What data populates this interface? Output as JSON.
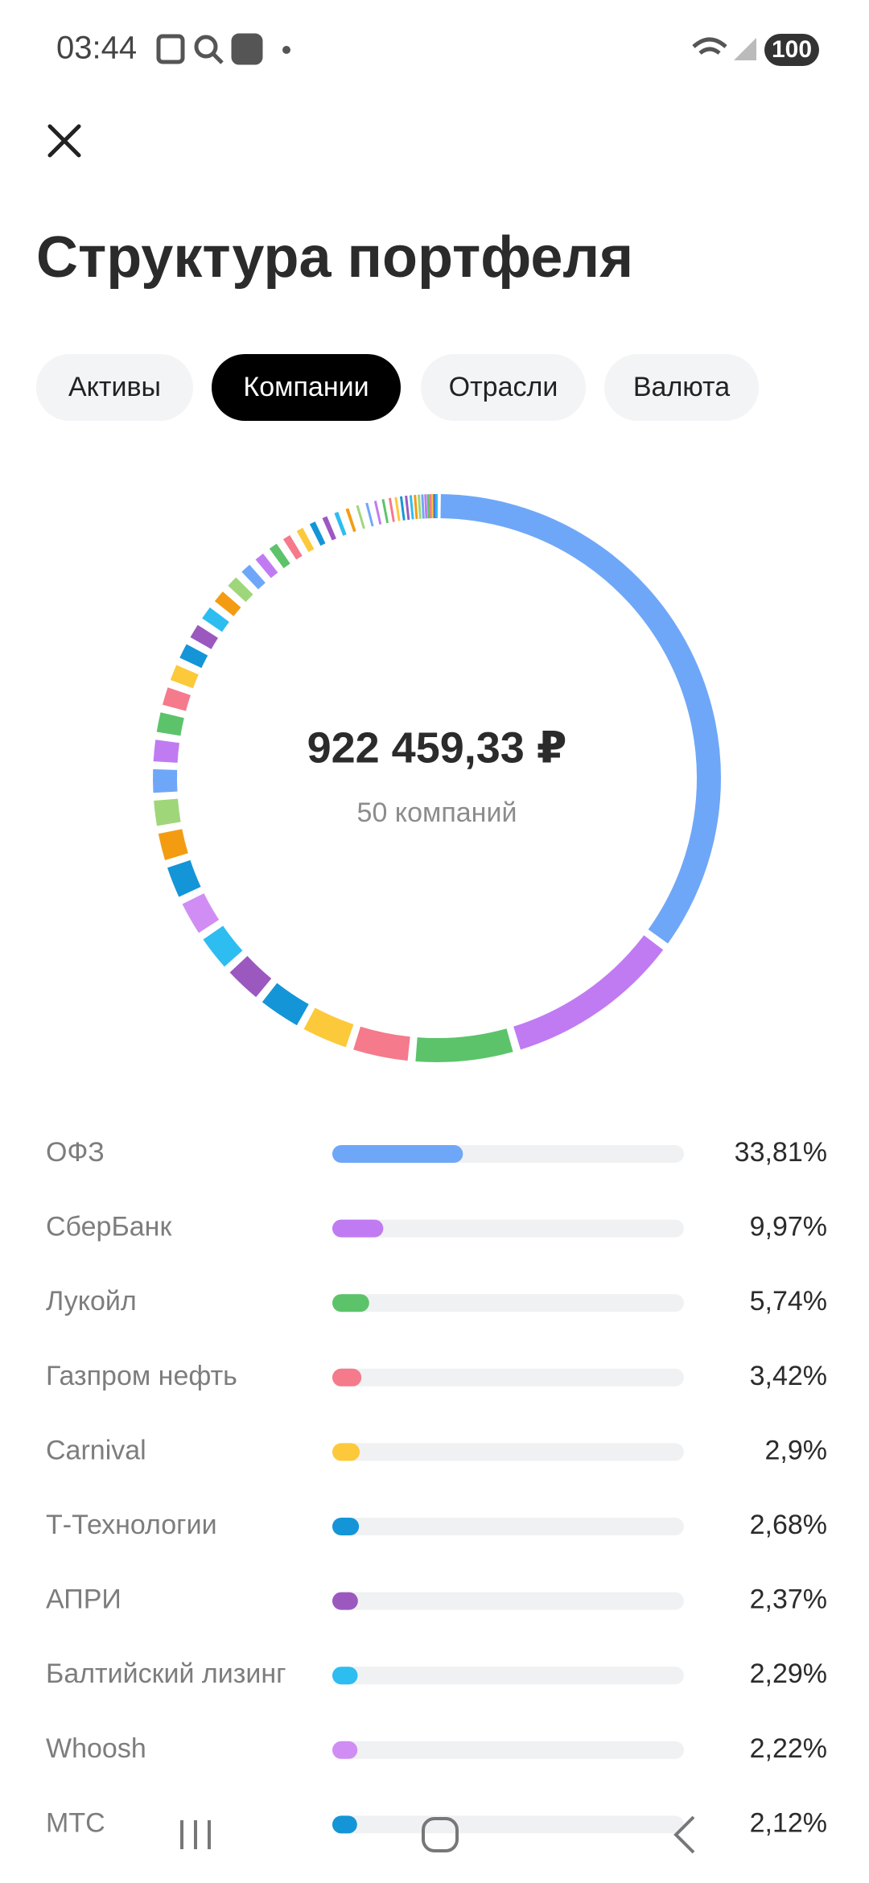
{
  "status_bar": {
    "time": "03:44",
    "battery": "100"
  },
  "header": {
    "title": "Структура портфеля"
  },
  "tabs": [
    {
      "label": "Активы",
      "active": false
    },
    {
      "label": "Компании",
      "active": true
    },
    {
      "label": "Отрасли",
      "active": false
    },
    {
      "label": "Валюта",
      "active": false
    }
  ],
  "chart_data": {
    "type": "donut",
    "center_value": "922 459,33 ₽",
    "center_caption": "50 компаний",
    "categories": [
      "ОФЗ",
      "СберБанк",
      "Лукойл",
      "Газпром нефть",
      "Carnival",
      "Т-Технологии",
      "АПРИ",
      "Балтийский лизинг",
      "Whoosh",
      "МТС"
    ],
    "values": [
      33.81,
      9.97,
      5.74,
      3.42,
      2.9,
      2.68,
      2.37,
      2.29,
      2.22,
      2.12
    ],
    "value_labels": [
      "33,81%",
      "9,97%",
      "5,74%",
      "3,42%",
      "2,9%",
      "2,68%",
      "2,37%",
      "2,29%",
      "2,22%",
      "2,12%"
    ],
    "colors": [
      "#6fa7f8",
      "#c07bf2",
      "#5cc36a",
      "#f47a8c",
      "#fcc93a",
      "#1495d8",
      "#9b59c0",
      "#2ebdf0",
      "#d08ef5",
      "#1495d8"
    ],
    "other_values": [
      1.9,
      1.8,
      1.7,
      1.6,
      1.5,
      1.4,
      1.3,
      1.25,
      1.2,
      1.15,
      1.1,
      1.05,
      1.0,
      0.95,
      0.9,
      0.85,
      0.8,
      0.75,
      0.7,
      0.65,
      0.6,
      0.55,
      0.5,
      0.45,
      0.4,
      0.35,
      0.3,
      0.28,
      0.26,
      0.24,
      0.22,
      0.2,
      0.18,
      0.16,
      0.14,
      0.12,
      0.1,
      0.08,
      0.06,
      0.04
    ],
    "other_colors": [
      "#f39c12",
      "#9fd67a",
      "#6fa7f8",
      "#c07bf2",
      "#5cc36a",
      "#f47a8c",
      "#fcc93a",
      "#1495d8",
      "#9b59c0",
      "#2ebdf0",
      "#f39c12",
      "#9fd67a",
      "#6fa7f8",
      "#c07bf2",
      "#5cc36a",
      "#f47a8c",
      "#fcc93a",
      "#1495d8",
      "#9b59c0",
      "#2ebdf0",
      "#f39c12",
      "#9fd67a",
      "#6fa7f8",
      "#c07bf2",
      "#5cc36a",
      "#f47a8c",
      "#fcc93a",
      "#1495d8",
      "#9b59c0",
      "#2ebdf0",
      "#f39c12",
      "#9fd67a",
      "#6fa7f8",
      "#c07bf2",
      "#5cc36a",
      "#f47a8c",
      "#fcc93a",
      "#1495d8",
      "#9b59c0",
      "#2ebdf0"
    ]
  }
}
